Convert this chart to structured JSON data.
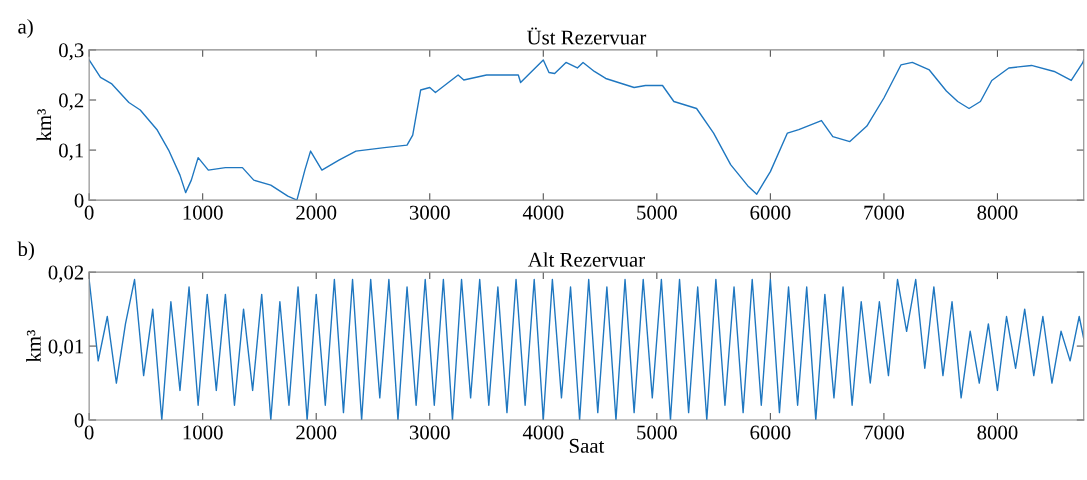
{
  "chart_data": [
    {
      "type": "line",
      "title": "Üst Rezervuar",
      "ylabel": "km³",
      "annotations": [
        "a)"
      ],
      "legend": false,
      "grid": false,
      "xlim": [
        0,
        8760
      ],
      "xticks": [
        0,
        1000,
        2000,
        3000,
        4000,
        5000,
        6000,
        7000,
        8000
      ],
      "ylim": [
        0,
        0.3
      ],
      "yticks": [
        {
          "value": 0,
          "label": "0"
        },
        {
          "value": 0.1,
          "label": "0,1"
        },
        {
          "value": 0.2,
          "label": "0,2"
        },
        {
          "value": 0.3,
          "label": "0,3"
        }
      ],
      "series": [
        {
          "color": "#1f77c0",
          "x": [
            0,
            100,
            200,
            350,
            450,
            600,
            700,
            800,
            850,
            900,
            960,
            1050,
            1200,
            1350,
            1450,
            1600,
            1750,
            1830,
            1900,
            1950,
            2050,
            2200,
            2350,
            2600,
            2800,
            2850,
            2920,
            3000,
            3050,
            3250,
            3300,
            3500,
            3780,
            3800,
            4000,
            4050,
            4100,
            4200,
            4300,
            4350,
            4450,
            4550,
            4800,
            4900,
            5050,
            5150,
            5350,
            5500,
            5650,
            5800,
            5880,
            6000,
            6150,
            6250,
            6450,
            6550,
            6700,
            6850,
            7000,
            7150,
            7250,
            7400,
            7550,
            7650,
            7750,
            7850,
            7950,
            8100,
            8300,
            8500,
            8650,
            8750,
            8760
          ],
          "values": [
            0.28,
            0.245,
            0.232,
            0.195,
            0.18,
            0.14,
            0.1,
            0.05,
            0.015,
            0.04,
            0.085,
            0.06,
            0.065,
            0.065,
            0.04,
            0.03,
            0.008,
            0.0,
            0.06,
            0.098,
            0.06,
            0.08,
            0.098,
            0.105,
            0.11,
            0.13,
            0.22,
            0.225,
            0.215,
            0.25,
            0.24,
            0.25,
            0.25,
            0.235,
            0.28,
            0.255,
            0.253,
            0.275,
            0.264,
            0.275,
            0.257,
            0.243,
            0.225,
            0.229,
            0.229,
            0.197,
            0.183,
            0.134,
            0.071,
            0.029,
            0.012,
            0.057,
            0.134,
            0.141,
            0.159,
            0.127,
            0.117,
            0.148,
            0.204,
            0.27,
            0.275,
            0.26,
            0.218,
            0.197,
            0.183,
            0.197,
            0.239,
            0.264,
            0.269,
            0.257,
            0.239,
            0.274,
            0.28
          ]
        }
      ]
    },
    {
      "type": "line",
      "title": "Alt Rezervuar",
      "ylabel": "km³",
      "xlabel": "Saat",
      "annotations": [
        "b)"
      ],
      "legend": false,
      "grid": false,
      "xlim": [
        0,
        8760
      ],
      "xticks": [
        0,
        1000,
        2000,
        3000,
        4000,
        5000,
        6000,
        7000,
        8000
      ],
      "ylim": [
        0,
        0.02
      ],
      "yticks": [
        {
          "value": 0,
          "label": "0"
        },
        {
          "value": 0.01,
          "label": "0,01"
        },
        {
          "value": 0.02,
          "label": "0,02"
        }
      ],
      "series": [
        {
          "color": "#1f77c0",
          "x": [
            0,
            80,
            160,
            240,
            320,
            400,
            480,
            560,
            640,
            720,
            800,
            880,
            960,
            1040,
            1120,
            1200,
            1280,
            1360,
            1440,
            1520,
            1600,
            1680,
            1760,
            1840,
            1920,
            2000,
            2080,
            2160,
            2240,
            2320,
            2400,
            2480,
            2560,
            2640,
            2720,
            2800,
            2880,
            2960,
            3040,
            3120,
            3200,
            3280,
            3360,
            3440,
            3520,
            3600,
            3680,
            3760,
            3840,
            3920,
            4000,
            4080,
            4160,
            4240,
            4320,
            4400,
            4480,
            4560,
            4640,
            4720,
            4800,
            4880,
            4960,
            5040,
            5120,
            5200,
            5280,
            5360,
            5440,
            5520,
            5600,
            5680,
            5760,
            5840,
            5920,
            6000,
            6080,
            6160,
            6240,
            6320,
            6400,
            6480,
            6560,
            6640,
            6720,
            6800,
            6880,
            6960,
            7040,
            7120,
            7200,
            7280,
            7360,
            7440,
            7520,
            7600,
            7680,
            7760,
            7840,
            7920,
            8000,
            8080,
            8160,
            8240,
            8320,
            8400,
            8480,
            8560,
            8640,
            8720,
            8760
          ],
          "values": [
            0.019,
            0.008,
            0.014,
            0.005,
            0.013,
            0.019,
            0.006,
            0.015,
            0.0,
            0.016,
            0.004,
            0.018,
            0.002,
            0.017,
            0.004,
            0.017,
            0.002,
            0.015,
            0.004,
            0.017,
            0.0,
            0.016,
            0.002,
            0.018,
            0.0,
            0.017,
            0.002,
            0.019,
            0.001,
            0.019,
            0.0,
            0.019,
            0.003,
            0.019,
            0.0,
            0.018,
            0.002,
            0.019,
            0.002,
            0.019,
            0.0,
            0.019,
            0.003,
            0.019,
            0.002,
            0.018,
            0.001,
            0.019,
            0.002,
            0.019,
            0.0,
            0.019,
            0.003,
            0.018,
            0.0,
            0.019,
            0.001,
            0.018,
            0.0,
            0.019,
            0.001,
            0.019,
            0.003,
            0.019,
            0.0,
            0.019,
            0.001,
            0.018,
            0.0,
            0.019,
            0.002,
            0.018,
            0.001,
            0.019,
            0.002,
            0.019,
            0.001,
            0.018,
            0.002,
            0.018,
            0.0,
            0.017,
            0.003,
            0.018,
            0.002,
            0.016,
            0.005,
            0.016,
            0.006,
            0.019,
            0.012,
            0.019,
            0.007,
            0.018,
            0.006,
            0.016,
            0.003,
            0.012,
            0.005,
            0.013,
            0.004,
            0.014,
            0.007,
            0.015,
            0.006,
            0.014,
            0.005,
            0.012,
            0.008,
            0.014,
            0.011
          ]
        }
      ]
    }
  ]
}
